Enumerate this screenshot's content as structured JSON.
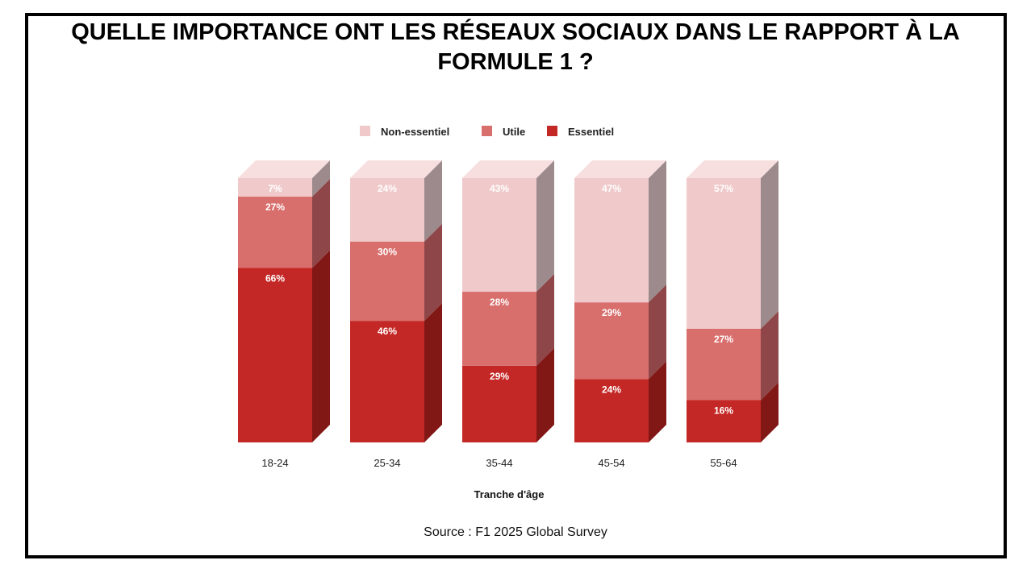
{
  "title": "QUELLE IMPORTANCE ONT LES RÉSEAUX SOCIAUX DANS LE RAPPORT À LA FORMULE 1 ?",
  "source": "Source : F1 2025 Global Survey",
  "colors": {
    "essentiel": "#c42826",
    "utile": "#d86f6d",
    "non_essentiel": "#f0cacb",
    "essentiel_side": "#811816",
    "utile_side": "#8e4648",
    "non_essentiel_side": "#9c8a8c",
    "essentiel_top": "#d64c4a",
    "utile_top": "#e49a99",
    "non_essentiel_top": "#f7dfe0"
  },
  "chart_data": {
    "type": "bar",
    "stacked": true,
    "three_d": true,
    "categories": [
      "18-24",
      "25-34",
      "35-44",
      "45-54",
      "55-64"
    ],
    "series": [
      {
        "name": "Essentiel",
        "key": "essentiel",
        "values": [
          66,
          46,
          29,
          24,
          16
        ]
      },
      {
        "name": "Utile",
        "key": "utile",
        "values": [
          27,
          30,
          28,
          29,
          27
        ]
      },
      {
        "name": "Non-essentiel",
        "key": "non_essentiel",
        "values": [
          7,
          24,
          43,
          47,
          57
        ]
      }
    ],
    "legend_order": [
      "Non-essentiel",
      "Utile",
      "Essentiel"
    ],
    "legend_position": "top-center",
    "xlabel": "Tranche d'âge",
    "ylabel": "",
    "ylim": [
      0,
      100
    ],
    "value_suffix": "%"
  }
}
